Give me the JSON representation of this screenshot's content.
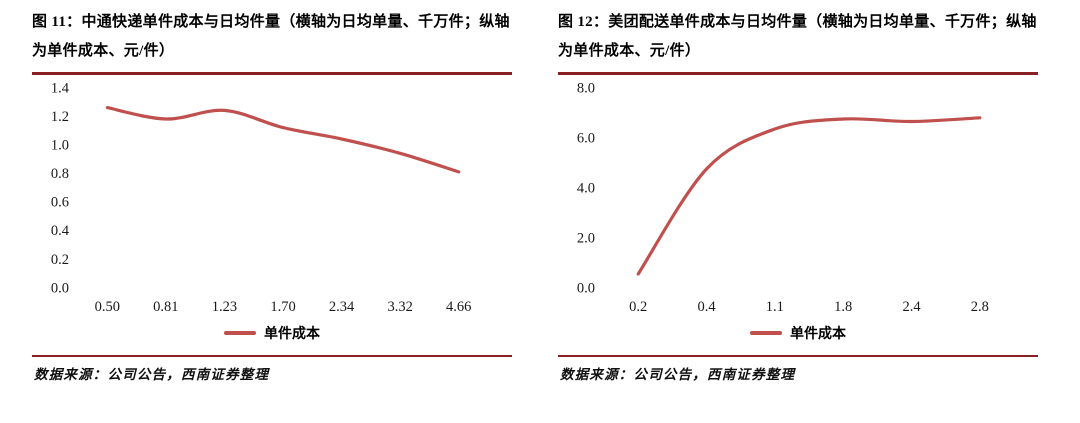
{
  "accent_color": "#c0504d",
  "rule_color": "#8a1f24",
  "chart_data": [
    {
      "type": "line",
      "fig_label": "图 11：",
      "title": "中通快递单件成本与日均件量（横轴为日均单量、千万件；纵轴为单件成本、元/件）",
      "categories": [
        "0.50",
        "0.81",
        "1.23",
        "1.70",
        "2.34",
        "3.32",
        "4.66"
      ],
      "series": [
        {
          "name": "单件成本",
          "values": [
            1.27,
            1.19,
            1.25,
            1.13,
            1.05,
            0.95,
            0.82
          ]
        }
      ],
      "xlabel": "日均单量（千万件）",
      "ylabel": "单件成本（元/件）",
      "ylim": [
        0,
        1.4
      ],
      "yticks": [
        "0.0",
        "0.2",
        "0.4",
        "0.6",
        "0.8",
        "1.0",
        "1.2",
        "1.4"
      ],
      "grid": false,
      "legend": "单件成本",
      "legend_position": "bottom",
      "source": "数据来源：公司公告，西南证券整理"
    },
    {
      "type": "line",
      "fig_label": "图 12：",
      "title": "美团配送单件成本与日均件量（横轴为日均单量、千万件；纵轴为单件成本、元/件）",
      "categories": [
        "0.2",
        "0.4",
        "1.1",
        "1.8",
        "2.4",
        "2.8"
      ],
      "series": [
        {
          "name": "单件成本",
          "values": [
            0.6,
            4.8,
            6.4,
            6.8,
            6.7,
            6.85
          ]
        }
      ],
      "xlabel": "日均单量（千万件）",
      "ylabel": "单件成本（元/件）",
      "ylim": [
        0,
        8
      ],
      "yticks": [
        "0.0",
        "2.0",
        "4.0",
        "6.0",
        "8.0"
      ],
      "grid": false,
      "legend": "单件成本",
      "legend_position": "bottom",
      "source": "数据来源：公司公告，西南证券整理"
    }
  ]
}
